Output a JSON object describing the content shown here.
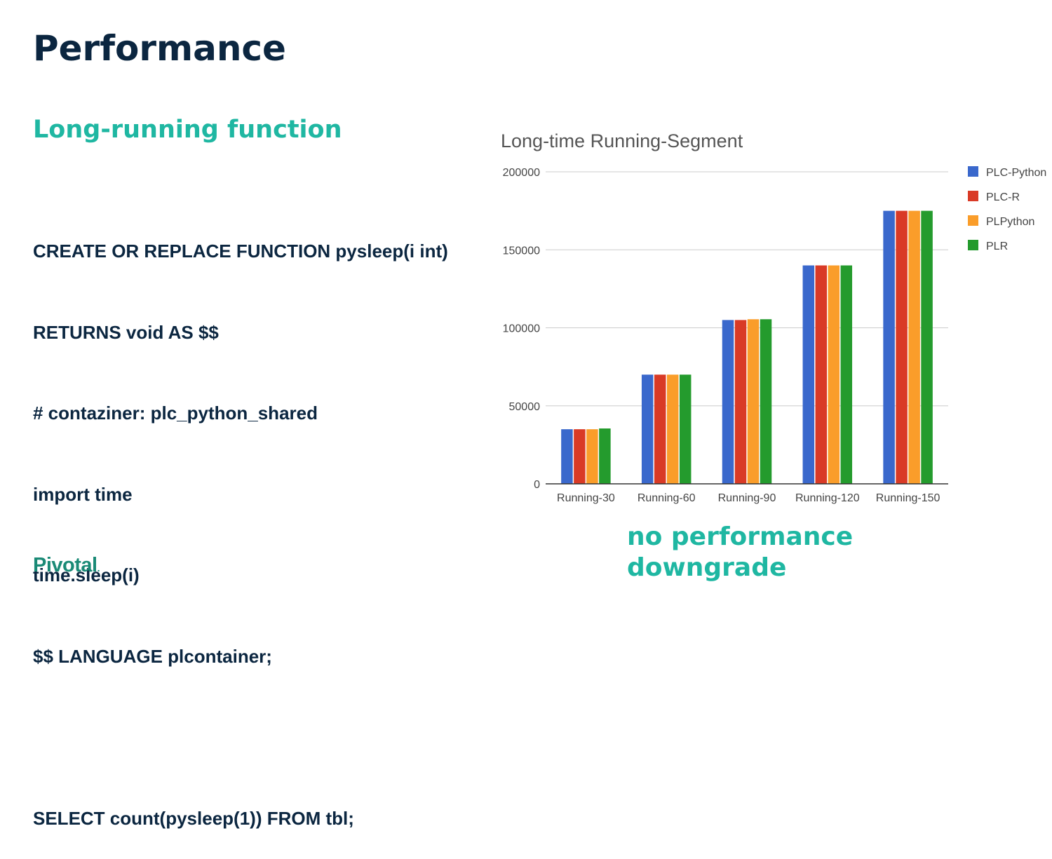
{
  "slide": {
    "title": "Performance",
    "subtitle": "Long-running function",
    "code_lines": [
      "CREATE OR REPLACE FUNCTION pysleep(i int)",
      "RETURNS void AS $$",
      "# contaziner: plc_python_shared",
      "import time",
      "time.sleep(i)",
      "$$ LANGUAGE plcontainer;",
      "",
      "SELECT count(pysleep(1)) FROM tbl;"
    ],
    "callout_lines": [
      "no performance",
      "downgrade"
    ],
    "logo_text": "Pivotal",
    "logo_mark": "."
  },
  "colors": {
    "title": "#0b2640",
    "accent": "#1fb7a2",
    "logo": "#1a8a76"
  },
  "chart_data": {
    "type": "bar",
    "title": "Long-time Running-Segment",
    "categories": [
      "Running-30",
      "Running-60",
      "Running-90",
      "Running-120",
      "Running-150"
    ],
    "series": [
      {
        "name": "PLC-Python",
        "color": "#3a68cc",
        "values": [
          35000,
          70000,
          105000,
          140000,
          175000
        ]
      },
      {
        "name": "PLC-R",
        "color": "#d93a26",
        "values": [
          35000,
          70000,
          105000,
          140000,
          175000
        ]
      },
      {
        "name": "PLPython",
        "color": "#fa9d2a",
        "values": [
          35000,
          70000,
          105500,
          140000,
          175000
        ]
      },
      {
        "name": "PLR",
        "color": "#249b2d",
        "values": [
          35500,
          70000,
          105500,
          140000,
          175000
        ]
      }
    ],
    "ylim": [
      0,
      200000
    ],
    "yticks": [
      0,
      50000,
      100000,
      150000,
      200000
    ],
    "xlabel": "",
    "ylabel": "",
    "grid": true,
    "legend": "right"
  }
}
